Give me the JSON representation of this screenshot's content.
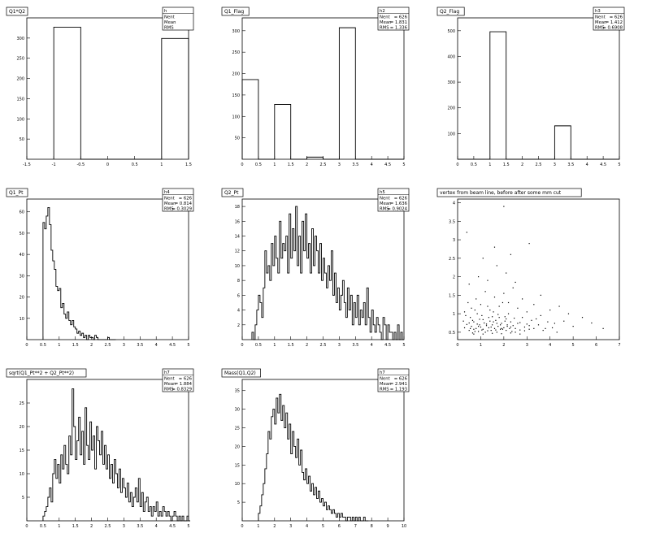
{
  "chart_data": [
    {
      "type": "bar",
      "title": "Q1*Q2",
      "stats": {
        "id": "h",
        "entries_label": "Nent",
        "entries": "",
        "mean_label": "Mean",
        "mean": "",
        "rms_label": "RMS",
        "rms": ""
      },
      "xlim": [
        -1.5,
        1.5
      ],
      "ylim": [
        0,
        350
      ],
      "xticks": [
        "-1.5",
        "-1",
        "-0.5",
        "0",
        "0.5",
        "1",
        "1.5"
      ],
      "yticks": [
        "50",
        "100",
        "150",
        "200",
        "250",
        "300"
      ],
      "bins": {
        "start": -1.0,
        "width": 0.5,
        "values": [
          327,
          0,
          0,
          0,
          299
        ]
      }
    },
    {
      "type": "bar",
      "title": "Q1_Flag",
      "stats": {
        "id": "h2",
        "entries_label": "Nent",
        "entries": "626",
        "mean_label": "Mean",
        "mean": "1.831",
        "rms_label": "RMS",
        "rms": "1.336"
      },
      "xlim": [
        0,
        5
      ],
      "ylim": [
        0,
        330
      ],
      "xticks": [
        "0",
        "0.5",
        "1",
        "1.5",
        "2",
        "2.5",
        "3",
        "3.5",
        "4",
        "4.5",
        "5"
      ],
      "yticks": [
        "50",
        "100",
        "150",
        "200",
        "250",
        "300"
      ],
      "bins": {
        "start": 0,
        "width": 0.5,
        "values": [
          186,
          0,
          128,
          0,
          5,
          0,
          307,
          0,
          0,
          0
        ]
      }
    },
    {
      "type": "bar",
      "title": "Q2_Flag",
      "stats": {
        "id": "h3",
        "entries_label": "Nent",
        "entries": "626",
        "mean_label": "Mean",
        "mean": "1.412",
        "rms_label": "RMS",
        "rms": "0.6908"
      },
      "xlim": [
        0,
        5
      ],
      "ylim": [
        0,
        550
      ],
      "xticks": [
        "0",
        "0.5",
        "1",
        "1.5",
        "2",
        "2.5",
        "3",
        "3.5",
        "4",
        "4.5",
        "5"
      ],
      "yticks": [
        "100",
        "200",
        "300",
        "400",
        "500"
      ],
      "bins": {
        "start": 0,
        "width": 0.5,
        "values": [
          0,
          0,
          496,
          0,
          0,
          0,
          130,
          0,
          0,
          0
        ]
      }
    },
    {
      "type": "bar",
      "title": "Q1_Pt",
      "stats": {
        "id": "h4",
        "entries_label": "Nent",
        "entries": "626",
        "mean_label": "Mean",
        "mean": "0.814",
        "rms_label": "RMS",
        "rms": "0.3029"
      },
      "xlim": [
        0,
        5
      ],
      "ylim": [
        0,
        66
      ],
      "xticks": [
        "0",
        "0.5",
        "1",
        "1.5",
        "2",
        "2.5",
        "3",
        "3.5",
        "4",
        "4.5",
        "5"
      ],
      "yticks": [
        "10",
        "20",
        "30",
        "40",
        "50",
        "60"
      ],
      "bins": {
        "start": 0.5,
        "width": 0.05,
        "values": [
          55,
          52,
          58,
          62,
          54,
          42,
          37,
          33,
          25,
          23,
          24,
          15,
          17,
          12,
          10,
          13,
          9,
          7,
          9,
          6,
          5,
          3,
          4,
          2,
          3,
          1,
          2,
          0,
          2,
          1,
          1,
          0,
          2,
          1,
          0,
          0,
          0,
          0,
          0,
          0,
          1,
          0,
          0,
          0,
          0
        ]
      }
    },
    {
      "type": "bar",
      "title": "Q2_Pt",
      "stats": {
        "id": "h5",
        "entries_label": "Nent",
        "entries": "626",
        "mean_label": "Mean",
        "mean": "1.636",
        "rms_label": "RMS",
        "rms": "0.9024"
      },
      "xlim": [
        0,
        5
      ],
      "ylim": [
        0,
        19
      ],
      "xticks": [
        "0",
        "0.5",
        "1",
        "1.5",
        "2",
        "2.5",
        "3",
        "3.5",
        "4",
        "4.5",
        "5"
      ],
      "yticks": [
        "2",
        "4",
        "6",
        "8",
        "10",
        "12",
        "14",
        "16",
        "18"
      ],
      "bins": {
        "start": 0.3,
        "width": 0.05,
        "values": [
          1,
          0,
          2,
          4,
          6,
          5,
          3,
          7,
          12,
          9,
          10,
          8,
          13,
          10,
          14,
          11,
          9,
          16,
          11,
          13,
          12,
          14,
          9,
          17,
          11,
          15,
          12,
          18,
          10,
          14,
          9,
          16,
          12,
          17,
          11,
          13,
          9,
          15,
          10,
          14,
          12,
          9,
          13,
          8,
          11,
          9,
          7,
          10,
          8,
          12,
          6,
          9,
          5,
          7,
          4,
          6,
          8,
          5,
          3,
          7,
          4,
          6,
          2,
          5,
          3,
          6,
          2,
          4,
          3,
          5,
          2,
          7,
          3,
          1,
          4,
          2,
          1,
          3,
          2,
          1,
          0,
          3,
          2,
          0,
          2,
          1,
          1,
          0,
          1,
          0,
          2,
          0,
          1,
          0
        ]
      }
    },
    {
      "type": "scatter",
      "title": "vertex from beam line, before after some mm cut",
      "xlim": [
        0,
        7
      ],
      "ylim": [
        0.3,
        4.1
      ],
      "xticks": [
        "0",
        "1",
        "2",
        "3",
        "4",
        "5",
        "6",
        "7"
      ],
      "yticks": [
        "0.5",
        "1",
        "1.5",
        "2",
        "2.5",
        "3",
        "3.5",
        "4"
      ],
      "points": [
        [
          0.3,
          0.62
        ],
        [
          0.4,
          0.71
        ],
        [
          0.5,
          0.55
        ],
        [
          0.55,
          0.9
        ],
        [
          0.6,
          0.66
        ],
        [
          0.65,
          0.48
        ],
        [
          0.7,
          0.78
        ],
        [
          0.75,
          1.1
        ],
        [
          0.8,
          0.6
        ],
        [
          0.85,
          0.72
        ],
        [
          0.9,
          0.52
        ],
        [
          0.95,
          0.85
        ],
        [
          1.0,
          0.64
        ],
        [
          1.05,
          0.95
        ],
        [
          1.1,
          0.58
        ],
        [
          1.15,
          0.75
        ],
        [
          1.2,
          0.5
        ],
        [
          1.25,
          0.68
        ],
        [
          1.3,
          1.2
        ],
        [
          1.35,
          0.62
        ],
        [
          1.4,
          0.8
        ],
        [
          1.45,
          0.55
        ],
        [
          1.5,
          0.7
        ],
        [
          1.55,
          1.05
        ],
        [
          1.6,
          0.6
        ],
        [
          1.65,
          0.82
        ],
        [
          1.7,
          0.5
        ],
        [
          1.75,
          0.66
        ],
        [
          1.8,
          0.9
        ],
        [
          1.85,
          0.58
        ],
        [
          1.9,
          0.74
        ],
        [
          1.95,
          1.3
        ],
        [
          2.0,
          0.62
        ],
        [
          2.05,
          0.8
        ],
        [
          2.1,
          0.55
        ],
        [
          2.15,
          0.7
        ],
        [
          2.2,
          1.0
        ],
        [
          2.25,
          0.6
        ],
        [
          2.3,
          0.78
        ],
        [
          2.35,
          0.52
        ],
        [
          2.4,
          0.68
        ],
        [
          2.45,
          0.88
        ],
        [
          2.5,
          0.6
        ],
        [
          2.6,
          0.74
        ],
        [
          2.7,
          0.56
        ],
        [
          2.8,
          0.9
        ],
        [
          2.9,
          0.64
        ],
        [
          3.0,
          0.72
        ],
        [
          3.1,
          0.58
        ],
        [
          3.2,
          0.82
        ],
        [
          3.3,
          0.6
        ],
        [
          3.5,
          0.7
        ],
        [
          3.7,
          0.55
        ],
        [
          3.9,
          0.78
        ],
        [
          4.1,
          0.62
        ],
        [
          4.3,
          0.5
        ],
        [
          0.35,
          0.95
        ],
        [
          0.45,
          1.3
        ],
        [
          0.6,
          1.15
        ],
        [
          0.8,
          1.4
        ],
        [
          1.0,
          1.25
        ],
        [
          1.2,
          1.6
        ],
        [
          1.4,
          1.1
        ],
        [
          1.6,
          1.45
        ],
        [
          1.8,
          1.2
        ],
        [
          2.0,
          1.55
        ],
        [
          2.2,
          1.3
        ],
        [
          2.4,
          1.7
        ],
        [
          2.6,
          1.15
        ],
        [
          2.8,
          1.4
        ],
        [
          3.0,
          1.05
        ],
        [
          3.3,
          1.25
        ],
        [
          3.6,
          0.95
        ],
        [
          4.0,
          1.1
        ],
        [
          0.5,
          1.8
        ],
        [
          0.9,
          2.0
        ],
        [
          1.3,
          1.9
        ],
        [
          1.7,
          2.3
        ],
        [
          2.1,
          2.1
        ],
        [
          2.5,
          1.85
        ],
        [
          1.1,
          2.5
        ],
        [
          1.6,
          2.8
        ],
        [
          2.3,
          2.6
        ],
        [
          0.4,
          3.2
        ],
        [
          2.0,
          3.9
        ],
        [
          3.1,
          2.9
        ],
        [
          0.7,
          0.45
        ],
        [
          1.1,
          0.45
        ],
        [
          1.5,
          0.47
        ],
        [
          1.9,
          0.46
        ],
        [
          2.3,
          0.48
        ],
        [
          2.7,
          0.45
        ],
        [
          0.25,
          0.8
        ],
        [
          0.3,
          1.05
        ],
        [
          0.5,
          0.75
        ],
        [
          0.7,
          0.58
        ],
        [
          0.9,
          0.66
        ],
        [
          1.1,
          0.84
        ],
        [
          1.3,
          0.54
        ],
        [
          1.5,
          0.92
        ],
        [
          1.7,
          0.74
        ],
        [
          1.9,
          0.6
        ],
        [
          2.1,
          0.86
        ],
        [
          2.3,
          0.64
        ],
        [
          2.5,
          0.5
        ],
        [
          2.7,
          0.76
        ],
        [
          2.9,
          0.54
        ],
        [
          3.1,
          0.68
        ],
        [
          3.4,
          0.86
        ],
        [
          3.8,
          0.6
        ],
        [
          4.2,
          0.74
        ],
        [
          4.6,
          0.8
        ],
        [
          5.0,
          0.66
        ],
        [
          5.8,
          0.75
        ],
        [
          6.3,
          0.6
        ],
        [
          4.8,
          1.0
        ],
        [
          5.4,
          0.9
        ],
        [
          3.6,
          1.5
        ],
        [
          4.4,
          1.2
        ],
        [
          1.25,
          0.72
        ],
        [
          1.35,
          0.9
        ],
        [
          1.45,
          0.64
        ],
        [
          1.55,
          0.78
        ],
        [
          1.65,
          0.56
        ],
        [
          1.75,
          0.98
        ],
        [
          1.85,
          0.7
        ],
        [
          1.95,
          0.58
        ],
        [
          2.05,
          0.92
        ],
        [
          2.15,
          0.66
        ],
        [
          0.55,
          0.6
        ],
        [
          0.65,
          0.82
        ],
        [
          0.75,
          0.52
        ],
        [
          0.85,
          1.0
        ],
        [
          0.95,
          0.7
        ],
        [
          1.05,
          0.56
        ]
      ]
    },
    {
      "type": "bar",
      "title": "sqrt(Q1_Pt**2 + Q2_Pt**2)",
      "stats": {
        "id": "h7",
        "entries_label": "Nent",
        "entries": "626",
        "mean_label": "Mean",
        "mean": "1.884",
        "rms_label": "RMS",
        "rms": "0.8329"
      },
      "xlim": [
        0,
        5
      ],
      "ylim": [
        0,
        30
      ],
      "xticks": [
        "0",
        "0.5",
        "1",
        "1.5",
        "2",
        "2.5",
        "3",
        "3.5",
        "4",
        "4.5",
        "5"
      ],
      "yticks": [
        "5",
        "10",
        "15",
        "20",
        "25"
      ],
      "bins": {
        "start": 0.5,
        "width": 0.05,
        "values": [
          1,
          2,
          3,
          5,
          7,
          4,
          10,
          13,
          9,
          12,
          8,
          14,
          11,
          16,
          12,
          10,
          18,
          14,
          28,
          20,
          13,
          17,
          22,
          14,
          19,
          12,
          24,
          16,
          13,
          21,
          15,
          18,
          11,
          20,
          17,
          14,
          19,
          12,
          16,
          11,
          14,
          9,
          12,
          8,
          13,
          10,
          7,
          11,
          6,
          9,
          7,
          5,
          8,
          4,
          6,
          3,
          5,
          7,
          4,
          9,
          3,
          6,
          2,
          4,
          5,
          2,
          3,
          1,
          3,
          2,
          4,
          1,
          2,
          1,
          3,
          2,
          1,
          2,
          1,
          0,
          1,
          2,
          1,
          0,
          1,
          0,
          1,
          0,
          0,
          1,
          0
        ]
      }
    },
    {
      "type": "bar",
      "title": "Mass(Q1,Q2)",
      "stats": {
        "id": "h7",
        "entries_label": "Nent",
        "entries": "626",
        "mean_label": "Mean",
        "mean": "2.941",
        "rms_label": "RMS",
        "rms": "1.193"
      },
      "xlim": [
        0,
        10
      ],
      "ylim": [
        0,
        38
      ],
      "xticks": [
        "0",
        "1",
        "2",
        "3",
        "4",
        "5",
        "6",
        "7",
        "8",
        "9",
        "10"
      ],
      "yticks": [
        "5",
        "10",
        "15",
        "20",
        "25",
        "30",
        "35"
      ],
      "bins": {
        "start": 1.0,
        "width": 0.1,
        "values": [
          2,
          4,
          7,
          10,
          14,
          18,
          24,
          22,
          28,
          30,
          26,
          33,
          29,
          34,
          27,
          31,
          25,
          29,
          22,
          26,
          18,
          24,
          20,
          17,
          22,
          15,
          19,
          13,
          11,
          14,
          10,
          12,
          8,
          10,
          7,
          9,
          6,
          8,
          5,
          6,
          4,
          5,
          3,
          4,
          3,
          2,
          3,
          2,
          1,
          2,
          1,
          2,
          1,
          1,
          0,
          1,
          1,
          0,
          1,
          0,
          1,
          0,
          1,
          0,
          0,
          1,
          0,
          0
        ]
      }
    }
  ]
}
